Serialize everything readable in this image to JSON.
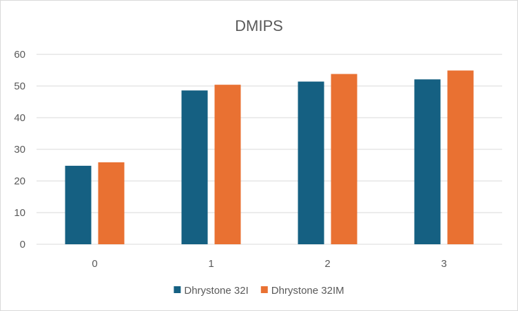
{
  "chart_data": {
    "type": "bar",
    "title": "DMIPS",
    "xlabel": "",
    "ylabel": "",
    "categories": [
      "0",
      "1",
      "2",
      "3"
    ],
    "series": [
      {
        "name": "Dhrystone 32I",
        "values": [
          24.8,
          48.6,
          51.4,
          52.1
        ],
        "color": "#156082"
      },
      {
        "name": "Dhrystone 32IM",
        "values": [
          25.9,
          50.4,
          53.8,
          54.9
        ],
        "color": "#E97132"
      }
    ],
    "ylim": [
      0,
      60
    ],
    "yticks": [
      0,
      10,
      20,
      30,
      40,
      50,
      60
    ],
    "grid": true,
    "legend_position": "bottom"
  }
}
